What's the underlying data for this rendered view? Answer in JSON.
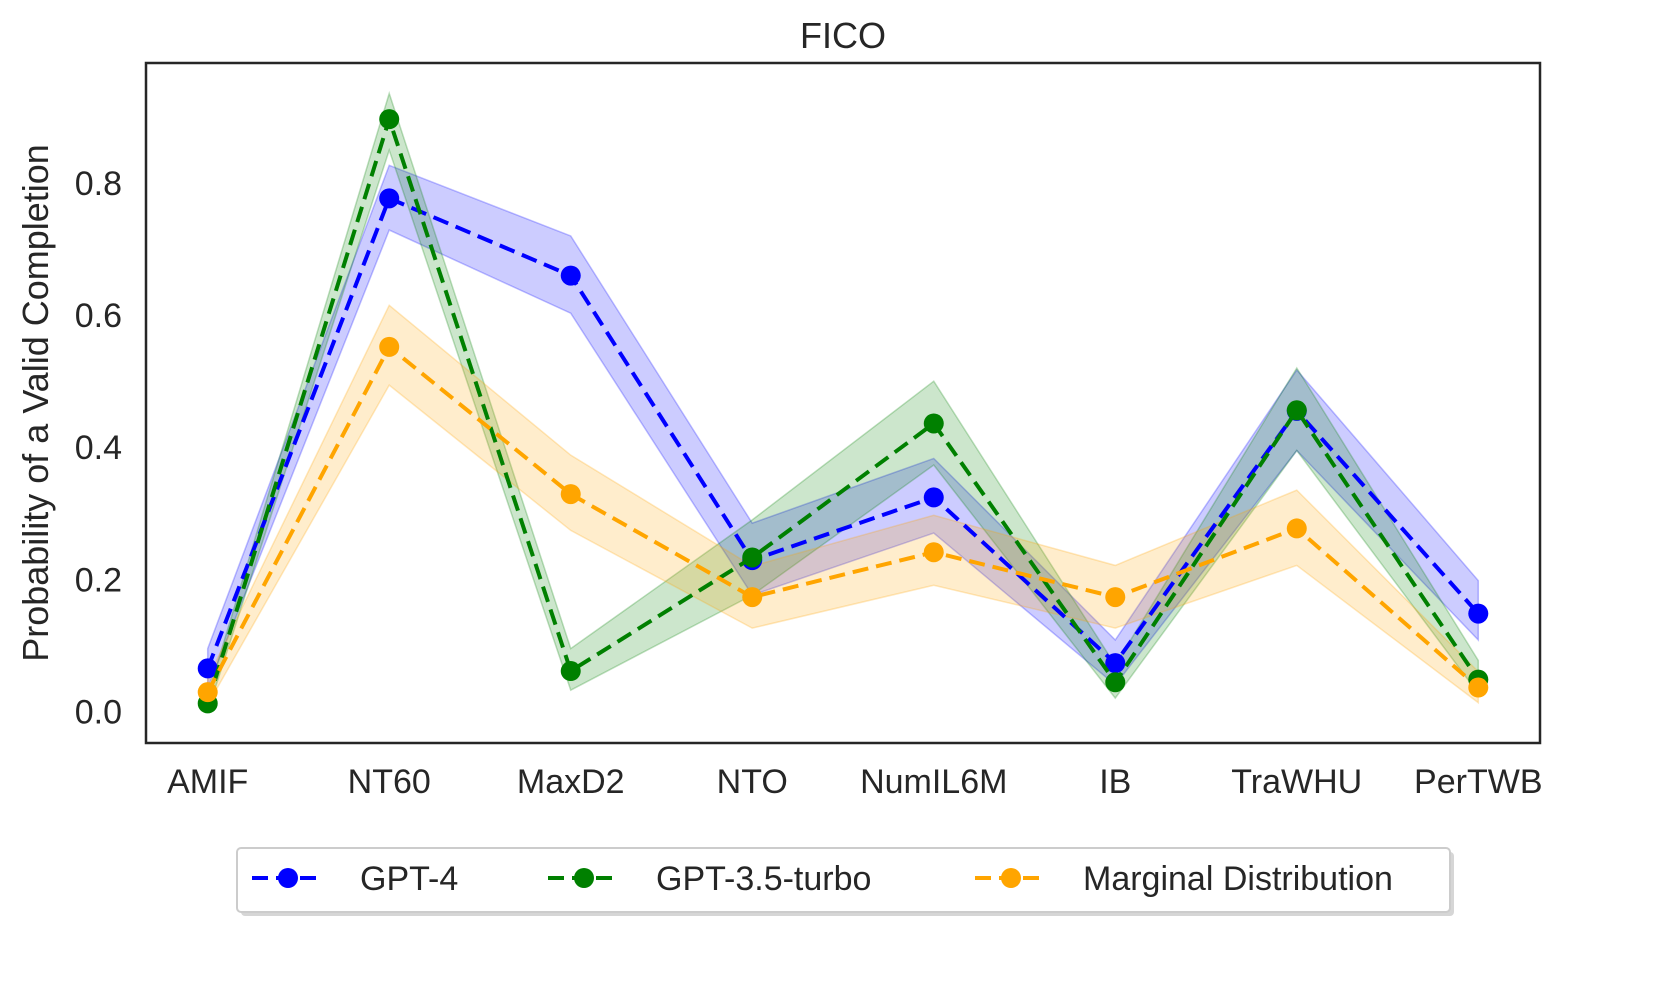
{
  "chart_data": {
    "type": "line",
    "title": "FICO",
    "xlabel": "",
    "ylabel": "Probability of a Valid Completion",
    "categories": [
      "AMIF",
      "NT60",
      "MaxD2",
      "NTO",
      "NumIL6M",
      "IB",
      "TraWHU",
      "PerTWB"
    ],
    "ylim": [
      -0.048,
      0.982
    ],
    "yticks": [
      0.0,
      0.2,
      0.4,
      0.6,
      0.8
    ],
    "ytick_labels": [
      "0.0",
      "0.2",
      "0.4",
      "0.6",
      "0.8"
    ],
    "grid": false,
    "legend_position": "bottom-center",
    "series": [
      {
        "name": "GPT-4",
        "color": "#0000ff",
        "values": [
          0.065,
          0.777,
          0.66,
          0.229,
          0.324,
          0.073,
          0.455,
          0.148
        ],
        "upper": [
          0.095,
          0.827,
          0.72,
          0.285,
          0.383,
          0.108,
          0.517,
          0.198
        ],
        "lower": [
          0.035,
          0.729,
          0.603,
          0.176,
          0.27,
          0.04,
          0.395,
          0.108
        ]
      },
      {
        "name": "GPT-3.5-turbo",
        "color": "#008000",
        "values": [
          0.012,
          0.897,
          0.061,
          0.233,
          0.436,
          0.044,
          0.456,
          0.048
        ],
        "upper": [
          0.024,
          0.936,
          0.095,
          0.29,
          0.5,
          0.07,
          0.52,
          0.077
        ],
        "lower": [
          0.0,
          0.85,
          0.032,
          0.176,
          0.373,
          0.02,
          0.395,
          0.027
        ]
      },
      {
        "name": "Marginal Distribution",
        "color": "#ffa500",
        "values": [
          0.029,
          0.552,
          0.329,
          0.173,
          0.241,
          0.173,
          0.277,
          0.036
        ],
        "upper": [
          0.05,
          0.615,
          0.388,
          0.22,
          0.297,
          0.221,
          0.335,
          0.06
        ],
        "lower": [
          0.01,
          0.494,
          0.274,
          0.126,
          0.191,
          0.126,
          0.221,
          0.013
        ]
      }
    ]
  }
}
